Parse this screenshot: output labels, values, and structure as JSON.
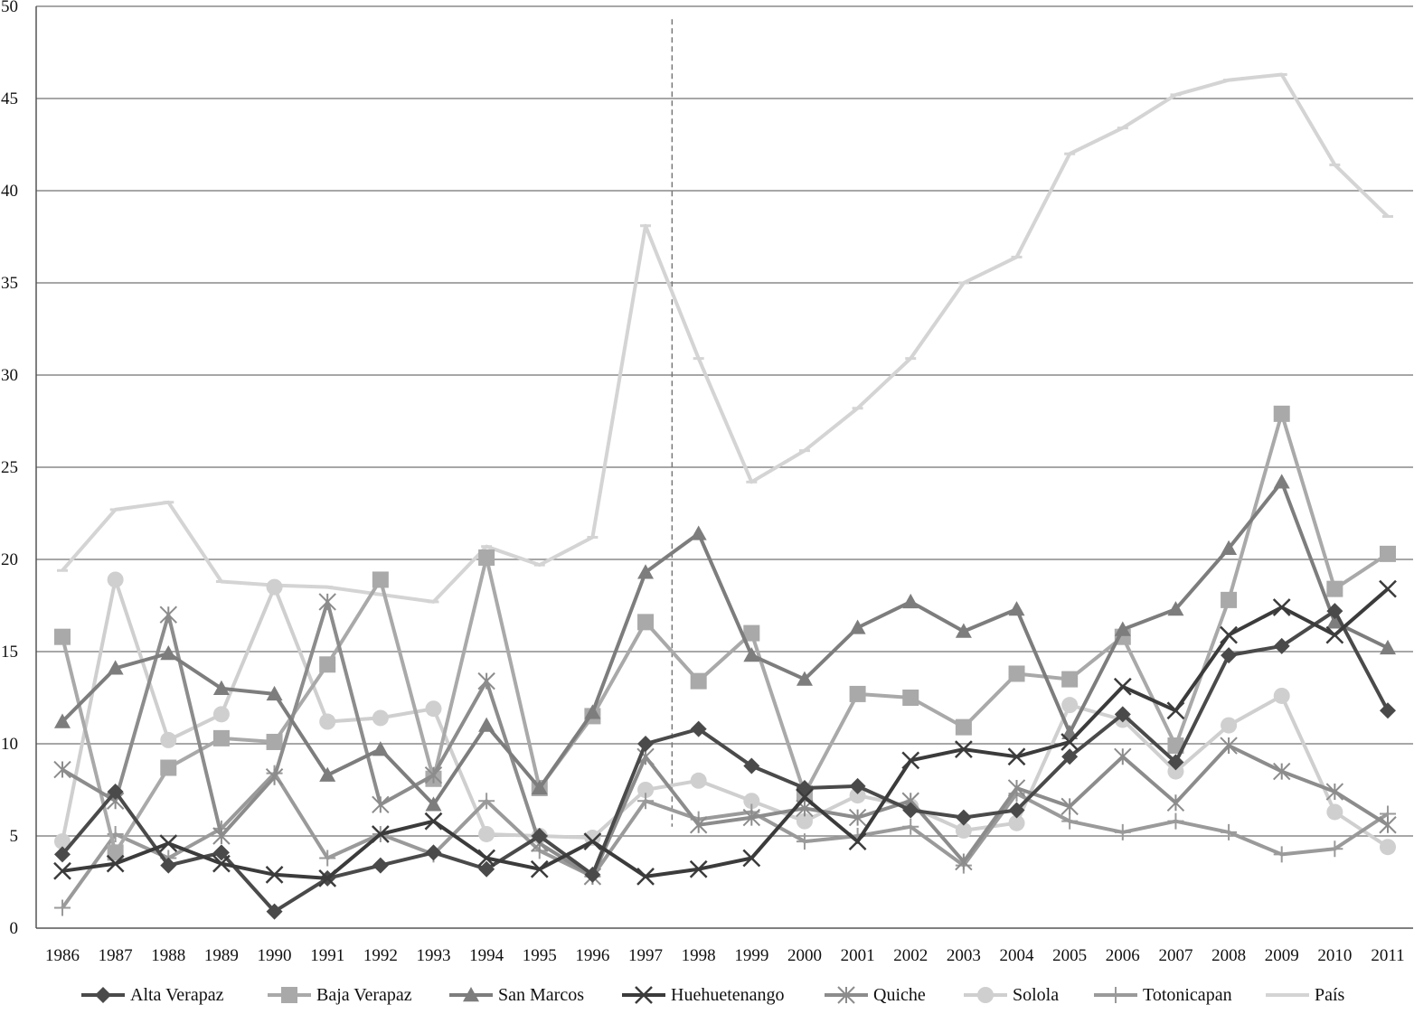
{
  "chart_data": {
    "type": "line",
    "title": "",
    "xlabel": "",
    "ylabel": "",
    "ylim": [
      0,
      50
    ],
    "yticks": [
      0,
      5,
      10,
      15,
      20,
      25,
      30,
      35,
      40,
      45,
      50
    ],
    "grid": "horizontal",
    "legend_position": "bottom",
    "reference_line": {
      "x_between": [
        "1997",
        "1998"
      ],
      "style": "dashed"
    },
    "categories": [
      "1986",
      "1987",
      "1988",
      "1989",
      "1990",
      "1991",
      "1992",
      "1993",
      "1994",
      "1995",
      "1996",
      "1997",
      "1998",
      "1999",
      "2000",
      "2001",
      "2002",
      "2003",
      "2004",
      "2005",
      "2006",
      "2007",
      "2008",
      "2009",
      "2010",
      "2011"
    ],
    "series": [
      {
        "name": "Alta Verapaz",
        "color": "#4a4a4a",
        "marker": "diamond",
        "values": [
          4.0,
          7.4,
          3.4,
          4.1,
          0.9,
          2.7,
          3.4,
          4.1,
          3.2,
          5.0,
          2.9,
          10.0,
          10.8,
          8.8,
          7.6,
          7.7,
          6.4,
          6.0,
          6.4,
          9.3,
          11.6,
          9.0,
          14.8,
          15.3,
          17.2,
          11.8
        ]
      },
      {
        "name": "Baja Verapaz",
        "color": "#a9a9a9",
        "marker": "square",
        "values": [
          15.8,
          4.1,
          8.7,
          10.3,
          10.1,
          14.3,
          18.9,
          8.1,
          20.1,
          7.6,
          11.5,
          16.6,
          13.4,
          16.0,
          7.3,
          12.7,
          12.5,
          10.9,
          13.8,
          13.5,
          15.8,
          9.9,
          17.8,
          27.9,
          18.4,
          20.3
        ]
      },
      {
        "name": "San Marcos",
        "color": "#7d7d7d",
        "marker": "triangle",
        "values": [
          11.2,
          14.1,
          14.9,
          13.0,
          12.7,
          8.3,
          9.7,
          6.7,
          11.0,
          7.6,
          11.7,
          19.3,
          21.4,
          14.8,
          13.5,
          16.3,
          17.7,
          16.1,
          17.3,
          10.6,
          16.2,
          17.3,
          20.6,
          24.2,
          16.6,
          15.2
        ]
      },
      {
        "name": "Huehuetenango",
        "color": "#3b3b3b",
        "marker": "x",
        "values": [
          3.1,
          3.5,
          4.6,
          3.5,
          2.9,
          2.7,
          5.1,
          5.8,
          3.8,
          3.2,
          4.7,
          2.8,
          3.2,
          3.8,
          7.1,
          4.7,
          9.1,
          9.7,
          9.3,
          10.1,
          13.1,
          11.8,
          15.9,
          17.4,
          15.9,
          18.4
        ]
      },
      {
        "name": "Quiche",
        "color": "#8c8c8c",
        "marker": "asterisk",
        "values": [
          8.6,
          6.9,
          17.0,
          5.0,
          8.2,
          17.7,
          6.7,
          8.3,
          13.4,
          4.6,
          2.8,
          9.3,
          5.6,
          6.0,
          6.5,
          6.0,
          6.9,
          3.6,
          7.6,
          6.6,
          9.3,
          6.8,
          9.9,
          8.5,
          7.4,
          5.6
        ]
      },
      {
        "name": "Solola",
        "color": "#cfcfcf",
        "marker": "circle",
        "values": [
          4.7,
          18.9,
          10.2,
          11.6,
          18.5,
          11.2,
          11.4,
          11.9,
          5.1,
          5.0,
          4.9,
          7.5,
          8.0,
          6.9,
          5.8,
          7.2,
          6.6,
          5.3,
          5.7,
          12.1,
          11.3,
          8.5,
          11.0,
          12.6,
          6.3,
          4.4
        ]
      },
      {
        "name": "Totonicapan",
        "color": "#9a9a9a",
        "marker": "plus",
        "values": [
          1.1,
          5.1,
          3.8,
          5.4,
          8.4,
          3.8,
          5.1,
          4.0,
          6.9,
          4.2,
          2.8,
          6.9,
          5.9,
          6.3,
          4.7,
          5.0,
          5.5,
          3.4,
          7.3,
          5.8,
          5.2,
          5.8,
          5.2,
          4.0,
          4.3,
          6.2
        ]
      },
      {
        "name": "País",
        "color": "#d4d4d4",
        "marker": "dash",
        "values": [
          19.4,
          22.7,
          23.1,
          18.8,
          18.6,
          18.5,
          18.1,
          17.7,
          20.7,
          19.7,
          21.2,
          38.1,
          30.9,
          24.2,
          25.9,
          28.2,
          30.9,
          35.0,
          36.4,
          42.0,
          43.4,
          45.2,
          46.0,
          46.3,
          41.4,
          38.6
        ]
      }
    ]
  }
}
